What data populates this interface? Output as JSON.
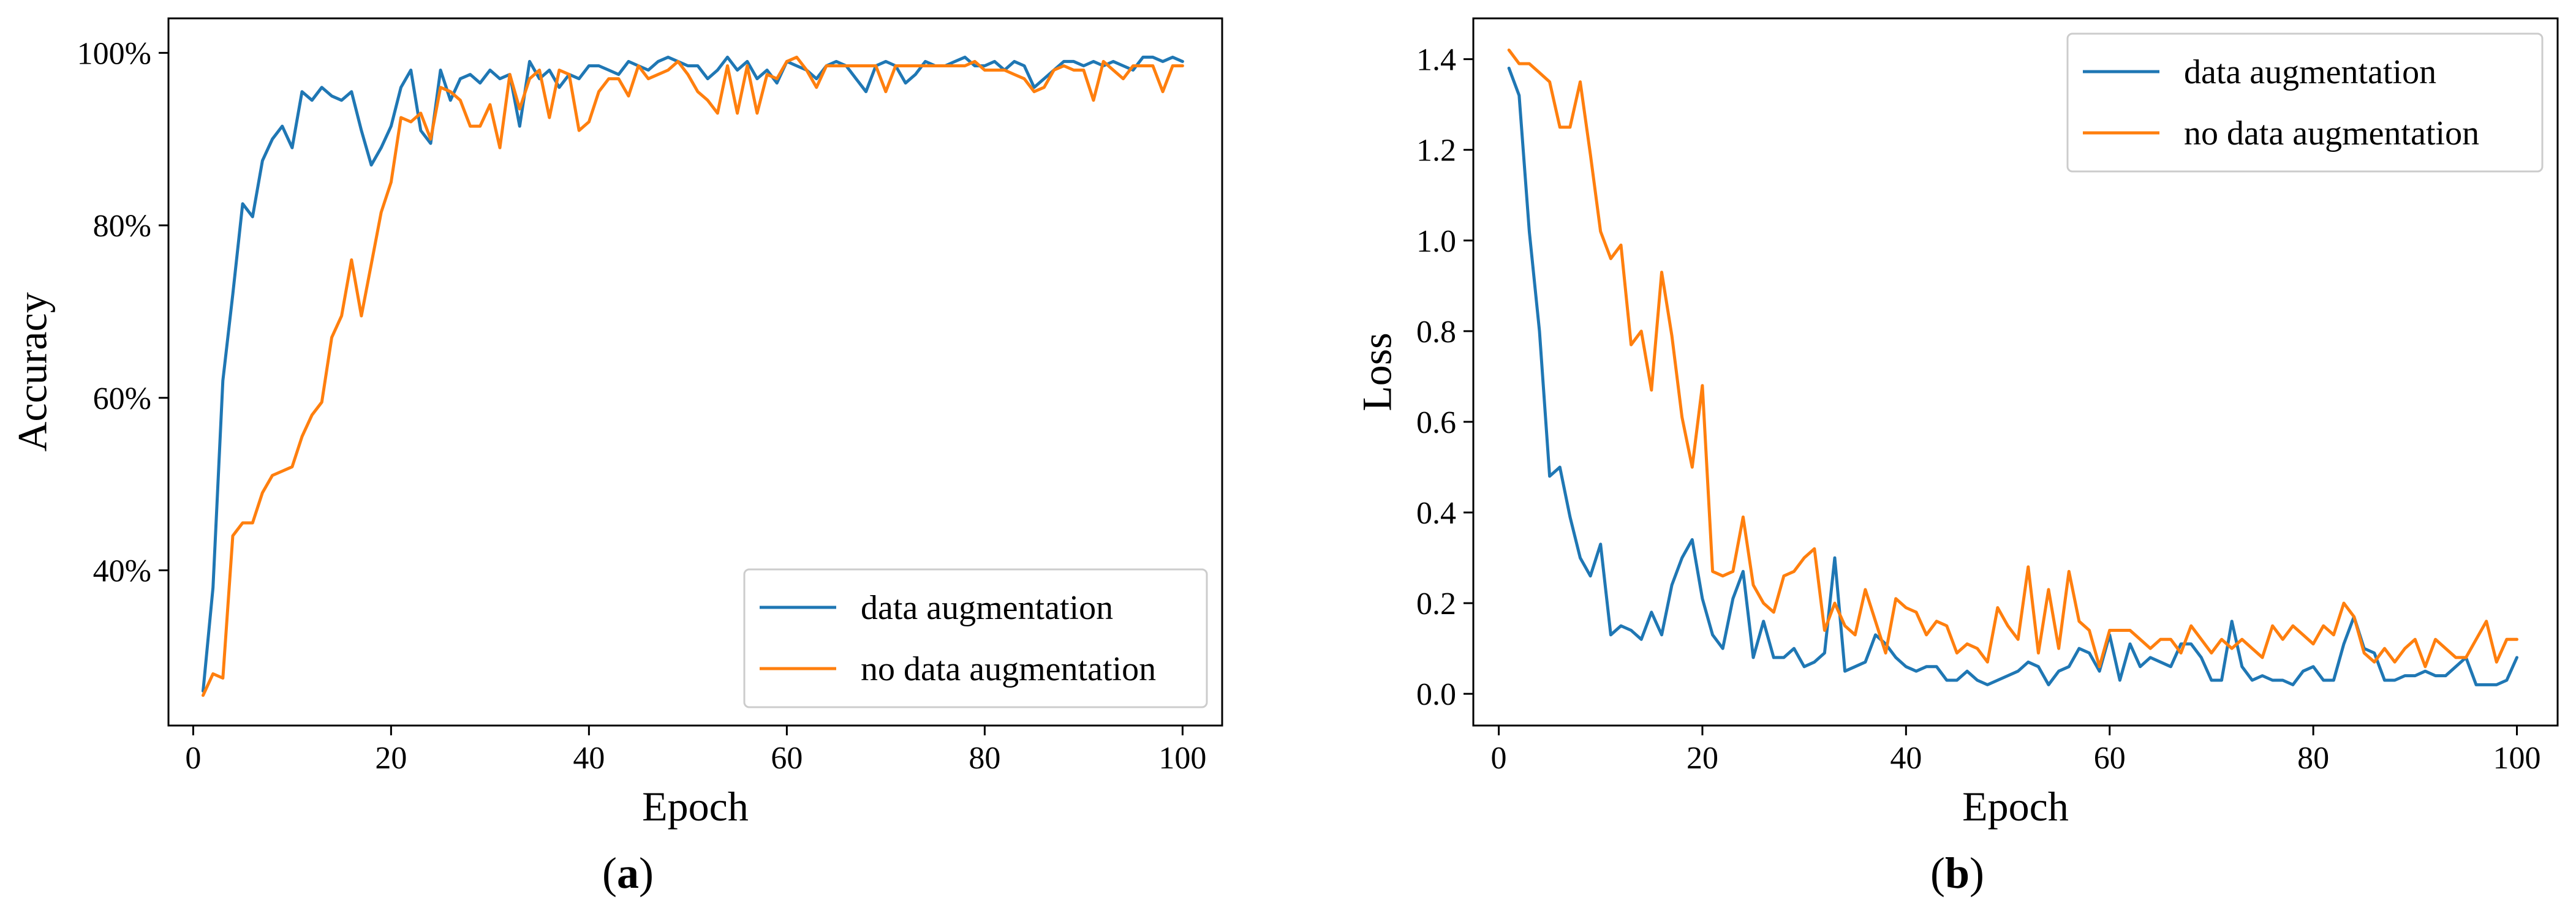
{
  "colors": {
    "series_1": "#1f77b4",
    "series_2": "#ff7f0e"
  },
  "captions": {
    "left_open": "(",
    "left_letter": "a",
    "left_close": ")",
    "right_open": "(",
    "right_letter": "b",
    "right_close": ")"
  },
  "chart_data": [
    {
      "id": "a",
      "type": "line",
      "title": "",
      "xlabel": "Epoch",
      "ylabel": "Accuracy",
      "xlim": [
        -2.5,
        104
      ],
      "ylim": [
        22,
        104
      ],
      "xticks": [
        0,
        20,
        40,
        60,
        80,
        100
      ],
      "xtick_labels": [
        "0",
        "20",
        "40",
        "60",
        "80",
        "100"
      ],
      "yticks": [
        40,
        60,
        80,
        100
      ],
      "ytick_labels": [
        "40%",
        "60%",
        "80%",
        "100%"
      ],
      "legend_position": "lower-right",
      "series": [
        {
          "name": "data augmentation",
          "color": "#1f77b4",
          "values": [
            26,
            38,
            62,
            72,
            82.5,
            81,
            87.5,
            90,
            91.5,
            89,
            95.5,
            94.5,
            96,
            95,
            94.5,
            95.5,
            91,
            87,
            89,
            91.5,
            96,
            98,
            91,
            89.5,
            98,
            94.5,
            97,
            97.5,
            96.5,
            98,
            97,
            97.5,
            91.5,
            99,
            97,
            98,
            96,
            97.5,
            97,
            98.5,
            98.5,
            98,
            97.5,
            99,
            98.5,
            98,
            99,
            99.5,
            99,
            98.5,
            98.5,
            97,
            98,
            99.5,
            98,
            99,
            97,
            98,
            96.5,
            99,
            98.5,
            98,
            97,
            98.5,
            99,
            98.5,
            97,
            95.5,
            98.5,
            99,
            98.5,
            96.5,
            97.5,
            99,
            98.5,
            98.5,
            99,
            99.5,
            98.5,
            98.5,
            99,
            98,
            99,
            98.5,
            96,
            97,
            98,
            99,
            99,
            98.5,
            99,
            98.5,
            99,
            98.5,
            98,
            99.5,
            99.5,
            99,
            99.5,
            99
          ]
        },
        {
          "name": "no data augmentation",
          "color": "#ff7f0e",
          "values": [
            25.5,
            28,
            27.5,
            44,
            45.5,
            45.5,
            49,
            51,
            51.5,
            52,
            55.5,
            58,
            59.5,
            67,
            69.5,
            76,
            69.5,
            75.5,
            81.5,
            85,
            92.5,
            92,
            93,
            90,
            96,
            95.5,
            94.5,
            91.5,
            91.5,
            94,
            89,
            97.5,
            93.5,
            97,
            98,
            92.5,
            98,
            97.5,
            91,
            92,
            95.5,
            97,
            97,
            95,
            98.5,
            97,
            97.5,
            98,
            99,
            97.5,
            95.5,
            94.5,
            93,
            98.5,
            93,
            98.5,
            93,
            97.5,
            97,
            99,
            99.5,
            98,
            96,
            98.5,
            98.5,
            98.5,
            98.5,
            98.5,
            98.5,
            95.5,
            98.5,
            98.5,
            98.5,
            98.5,
            98.5,
            98.5,
            98.5,
            98.5,
            99,
            98,
            98,
            98,
            97.5,
            97,
            95.5,
            96,
            98,
            98.5,
            98,
            98,
            94.5,
            99,
            98,
            97,
            98.5,
            98.5,
            98.5,
            95.5,
            98.5,
            98.5
          ]
        }
      ]
    },
    {
      "id": "b",
      "type": "line",
      "title": "",
      "xlabel": "Epoch",
      "ylabel": "Loss",
      "xlim": [
        -2.5,
        104
      ],
      "ylim": [
        -0.07,
        1.49
      ],
      "xticks": [
        0,
        20,
        40,
        60,
        80,
        100
      ],
      "xtick_labels": [
        "0",
        "20",
        "40",
        "60",
        "80",
        "100"
      ],
      "yticks": [
        0,
        0.2,
        0.4,
        0.6,
        0.8,
        1.0,
        1.2,
        1.4
      ],
      "ytick_labels": [
        "0.0",
        "0.2",
        "0.4",
        "0.6",
        "0.8",
        "1.0",
        "1.2",
        "1.4"
      ],
      "legend_position": "upper-right",
      "series": [
        {
          "name": "data augmentation",
          "color": "#1f77b4",
          "values": [
            1.38,
            1.32,
            1.02,
            0.8,
            0.48,
            0.5,
            0.39,
            0.3,
            0.26,
            0.33,
            0.13,
            0.15,
            0.14,
            0.12,
            0.18,
            0.13,
            0.24,
            0.3,
            0.34,
            0.21,
            0.13,
            0.1,
            0.21,
            0.27,
            0.08,
            0.16,
            0.08,
            0.08,
            0.1,
            0.06,
            0.07,
            0.09,
            0.3,
            0.05,
            0.06,
            0.07,
            0.13,
            0.11,
            0.08,
            0.06,
            0.05,
            0.06,
            0.06,
            0.03,
            0.03,
            0.05,
            0.03,
            0.02,
            0.03,
            0.04,
            0.05,
            0.07,
            0.06,
            0.02,
            0.05,
            0.06,
            0.1,
            0.09,
            0.05,
            0.13,
            0.03,
            0.11,
            0.06,
            0.08,
            0.07,
            0.06,
            0.11,
            0.11,
            0.08,
            0.03,
            0.03,
            0.16,
            0.06,
            0.03,
            0.04,
            0.03,
            0.03,
            0.02,
            0.05,
            0.06,
            0.03,
            0.03,
            0.11,
            0.17,
            0.1,
            0.09,
            0.03,
            0.03,
            0.04,
            0.04,
            0.05,
            0.04,
            0.04,
            0.06,
            0.08,
            0.02,
            0.02,
            0.02,
            0.03,
            0.08
          ]
        },
        {
          "name": "no data augmentation",
          "color": "#ff7f0e",
          "values": [
            1.42,
            1.39,
            1.39,
            1.37,
            1.35,
            1.25,
            1.25,
            1.35,
            1.19,
            1.02,
            0.96,
            0.99,
            0.77,
            0.8,
            0.67,
            0.93,
            0.79,
            0.61,
            0.5,
            0.68,
            0.27,
            0.26,
            0.27,
            0.39,
            0.24,
            0.2,
            0.18,
            0.26,
            0.27,
            0.3,
            0.32,
            0.14,
            0.2,
            0.15,
            0.13,
            0.23,
            0.16,
            0.09,
            0.21,
            0.19,
            0.18,
            0.13,
            0.16,
            0.15,
            0.09,
            0.11,
            0.1,
            0.07,
            0.19,
            0.15,
            0.12,
            0.28,
            0.09,
            0.23,
            0.1,
            0.27,
            0.16,
            0.14,
            0.06,
            0.14,
            0.14,
            0.14,
            0.12,
            0.1,
            0.12,
            0.12,
            0.09,
            0.15,
            0.12,
            0.09,
            0.12,
            0.1,
            0.12,
            0.1,
            0.08,
            0.15,
            0.12,
            0.15,
            0.13,
            0.11,
            0.15,
            0.13,
            0.2,
            0.17,
            0.09,
            0.07,
            0.1,
            0.07,
            0.1,
            0.12,
            0.06,
            0.12,
            0.1,
            0.08,
            0.08,
            0.12,
            0.16,
            0.07,
            0.12,
            0.12
          ]
        }
      ]
    }
  ]
}
